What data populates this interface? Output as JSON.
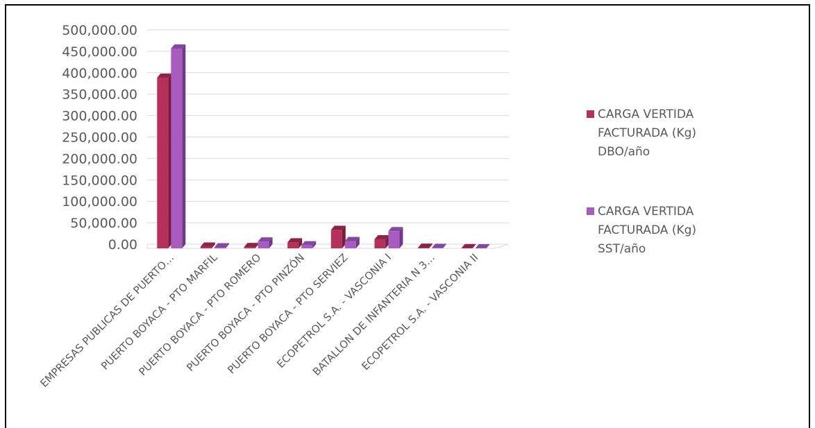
{
  "chart_data": {
    "type": "bar",
    "categories": [
      "EMPRESAS PUBLICAS DE PUERTO…",
      "PUERTO BOYACA - PTO MARFIL",
      "PUERTO BOYACA - PTO ROMERO",
      "PUERTO BOYACA - PTO PINZÓN",
      "PUERTO BOYACA - PTO SERVIEZ",
      "ECOPETROL S.A. - VASCONIA I",
      "BATALLON DE INFANTERIA N 3…",
      "ECOPETROL S.A. - VASCONIA II"
    ],
    "series": [
      {
        "name_lines": [
          "CARGA VERTIDA",
          "FACTURADA (Kg)",
          "DBO/año"
        ],
        "color": "#B5315A",
        "top_color": "#8E2347",
        "side_color": "#7A1D3C",
        "values": [
          398000,
          4000,
          3000,
          14000,
          43000,
          21000,
          1500,
          500
        ]
      },
      {
        "name_lines": [
          "CARGA VERTIDA",
          "FACTURADA (Kg)",
          "SST/año"
        ],
        "color": "#A85CC0",
        "top_color": "#8548A0",
        "side_color": "#6F3A88",
        "values": [
          466000,
          2500,
          16000,
          7000,
          17000,
          40000,
          1000,
          300
        ]
      }
    ],
    "y_ticks": [
      "0.00",
      "50,000.00",
      "100,000.00",
      "150,000.00",
      "200,000.00",
      "250,000.00",
      "300,000.00",
      "350,000.00",
      "400,000.00",
      "450,000.00",
      "500,000.00"
    ],
    "ylim": [
      0,
      500000
    ],
    "grid": true,
    "legend_position": "right",
    "gridline_color": "#D9D9D9"
  }
}
